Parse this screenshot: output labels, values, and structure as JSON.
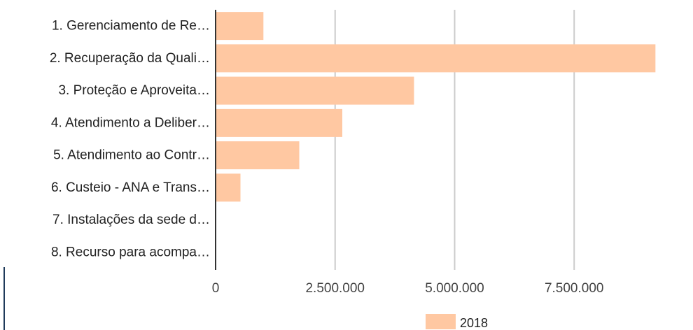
{
  "chart_data": {
    "type": "bar",
    "orientation": "horizontal",
    "categories": [
      "1. Gerenciamento de Re…",
      "2. Recuperação da Quali…",
      "3. Proteção e Aproveita…",
      "4. Atendimento a Deliber…",
      "5. Atendimento ao Contr…",
      "6. Custeio - ANA e Trans…",
      "7. Instalações da sede d…",
      "8. Recurso para acompa…"
    ],
    "series": [
      {
        "name": "2018",
        "color": "#ffc8a2",
        "values": [
          1000000,
          9200000,
          4150000,
          2650000,
          1750000,
          520000,
          0,
          0
        ]
      }
    ],
    "xlim": [
      0,
      9400000
    ],
    "xticks": [
      0,
      2500000,
      5000000,
      7500000
    ],
    "xtick_labels": [
      "0",
      "2.500.000",
      "5.000.000",
      "7.500.000"
    ],
    "grid": true,
    "legend_position": "bottom"
  }
}
